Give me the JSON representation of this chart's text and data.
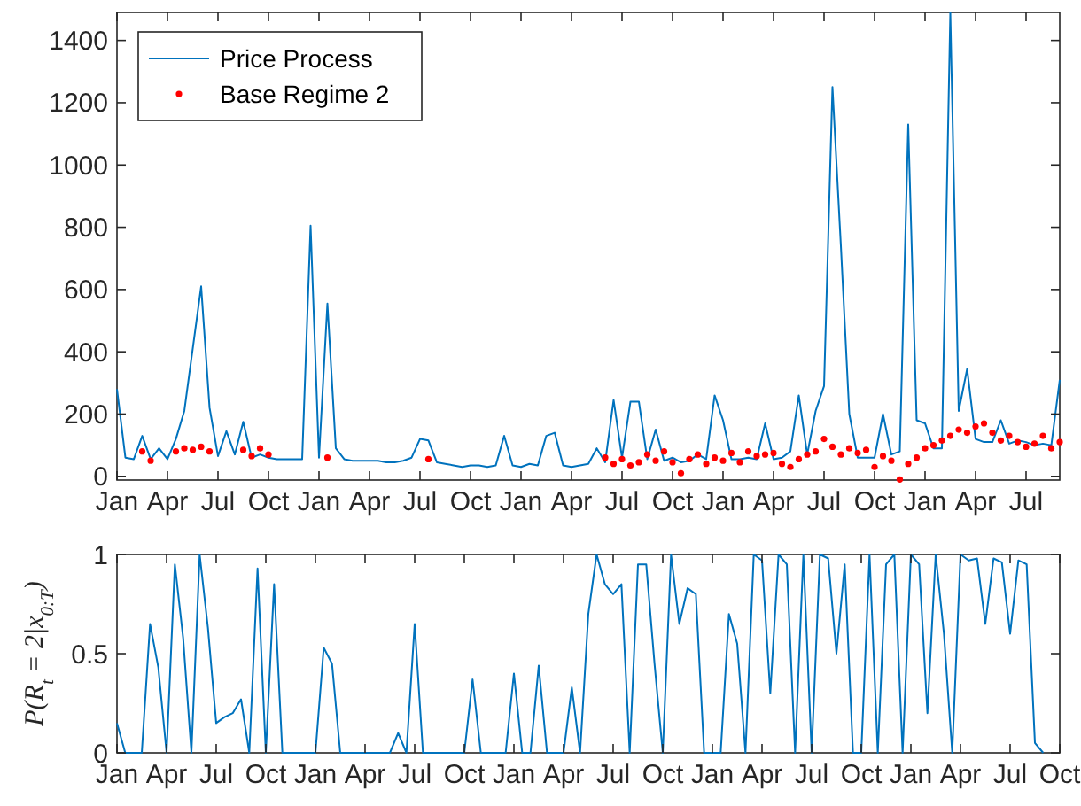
{
  "chart_data": [
    {
      "type": "line",
      "legend": "top left",
      "ylim": [
        -12,
        1490
      ],
      "categories": [
        "Jan",
        null,
        null,
        null,
        null,
        null,
        "Apr",
        null,
        null,
        null,
        null,
        null,
        "Jul",
        null,
        null,
        null,
        null,
        null,
        "Oct",
        null,
        null,
        null,
        null,
        null,
        "Jan",
        null,
        null,
        null,
        null,
        null,
        "Apr",
        null,
        null,
        null,
        null,
        null,
        "Jul",
        null,
        null,
        null,
        null,
        null,
        "Oct",
        null,
        null,
        null,
        null,
        null,
        "Jan",
        null,
        null,
        null,
        null,
        null,
        "Apr",
        null,
        null,
        null,
        null,
        null,
        "Jul",
        null,
        null,
        null,
        null,
        null,
        "Oct",
        null,
        null,
        null,
        null,
        null,
        "Jan",
        null,
        null,
        null,
        null,
        null,
        "Apr",
        null,
        null,
        null,
        null,
        null,
        "Jul",
        null,
        null,
        null,
        null,
        null,
        "Oct",
        null,
        null,
        null,
        null,
        null,
        "Jan",
        null,
        null,
        null,
        null,
        null,
        "Apr",
        null,
        null,
        null,
        null,
        null,
        "Jul",
        null,
        null,
        null,
        null
      ],
      "yticks": [
        0,
        200,
        400,
        600,
        800,
        1000,
        1200,
        1400
      ],
      "series": [
        {
          "name": "Price Process",
          "marker": "none",
          "color": "#0072bd",
          "values": [
            280,
            60,
            55,
            130,
            55,
            90,
            55,
            120,
            210,
            410,
            610,
            220,
            65,
            145,
            70,
            175,
            60,
            70,
            60,
            55,
            55,
            55,
            55,
            805,
            60,
            555,
            90,
            55,
            50,
            50,
            50,
            50,
            45,
            45,
            50,
            60,
            120,
            115,
            45,
            40,
            35,
            30,
            35,
            35,
            30,
            35,
            130,
            35,
            30,
            40,
            35,
            130,
            140,
            35,
            30,
            35,
            40,
            90,
            45,
            245,
            60,
            240,
            240,
            55,
            150,
            50,
            60,
            45,
            50,
            70,
            55,
            260,
            180,
            55,
            55,
            60,
            55,
            170,
            55,
            60,
            80,
            260,
            70,
            210,
            290,
            1250,
            740,
            200,
            60,
            60,
            60,
            200,
            70,
            80,
            1130,
            180,
            170,
            90,
            90,
            1490,
            210,
            345,
            120,
            110,
            110,
            180,
            105,
            115,
            110,
            100,
            105,
            100,
            310
          ]
        },
        {
          "name": "Base Regime 2",
          "type": "scatter",
          "marker": "circle",
          "color": "#ff0000",
          "values": [
            null,
            null,
            null,
            80,
            50,
            null,
            null,
            80,
            90,
            85,
            95,
            80,
            null,
            null,
            null,
            85,
            65,
            90,
            70,
            null,
            null,
            null,
            null,
            null,
            null,
            60,
            null,
            null,
            null,
            null,
            null,
            null,
            null,
            null,
            null,
            null,
            null,
            55,
            null,
            null,
            null,
            null,
            null,
            null,
            null,
            null,
            null,
            null,
            null,
            null,
            null,
            null,
            null,
            null,
            null,
            null,
            null,
            null,
            60,
            40,
            55,
            35,
            45,
            70,
            50,
            80,
            45,
            10,
            55,
            70,
            40,
            60,
            50,
            75,
            45,
            80,
            65,
            70,
            75,
            40,
            30,
            55,
            70,
            80,
            120,
            95,
            70,
            90,
            75,
            85,
            30,
            65,
            50,
            -10,
            40,
            60,
            90,
            100,
            115,
            130,
            150,
            140,
            160,
            170,
            140,
            115,
            130,
            110,
            95,
            105,
            130,
            90,
            110
          ]
        }
      ]
    },
    {
      "type": "line",
      "ylabel": "P(R$_{t}$ = 2|x$_{0:T}$)",
      "ylim": [
        0,
        1
      ],
      "categories": [
        "Jan",
        null,
        null,
        null,
        null,
        null,
        "Apr",
        null,
        null,
        null,
        null,
        null,
        "Jul",
        null,
        null,
        null,
        null,
        null,
        "Oct",
        null,
        null,
        null,
        null,
        null,
        "Jan",
        null,
        null,
        null,
        null,
        null,
        "Apr",
        null,
        null,
        null,
        null,
        null,
        "Jul",
        null,
        null,
        null,
        null,
        null,
        "Oct",
        null,
        null,
        null,
        null,
        null,
        "Jan",
        null,
        null,
        null,
        null,
        null,
        "Apr",
        null,
        null,
        null,
        null,
        null,
        "Jul",
        null,
        null,
        null,
        null,
        null,
        "Oct",
        null,
        null,
        null,
        null,
        null,
        "Jan",
        null,
        null,
        null,
        null,
        null,
        "Apr",
        null,
        null,
        null,
        null,
        null,
        "Jul",
        null,
        null,
        null,
        null,
        null,
        "Oct",
        null,
        null,
        null,
        null,
        null,
        "Jan",
        null,
        null,
        null,
        null,
        null,
        "Apr",
        null,
        null,
        null,
        null,
        null,
        "Jul",
        null,
        null,
        null,
        null,
        null,
        "Oct"
      ],
      "yticks": [
        0,
        0.5,
        1
      ],
      "series": [
        {
          "marker": "none",
          "color": "#0072bd",
          "values": [
            0.15,
            0,
            0,
            0,
            0.65,
            0.43,
            0,
            0.95,
            0.58,
            0,
            1,
            0.63,
            0.15,
            0.18,
            0.2,
            0.27,
            0,
            0.93,
            0,
            0.85,
            0,
            0,
            0,
            0,
            0,
            0.53,
            0.45,
            0,
            0,
            0,
            0,
            0,
            0,
            0,
            0.1,
            0,
            0.65,
            0,
            0,
            0,
            0,
            0,
            0,
            0.37,
            0,
            0,
            0,
            0,
            0.4,
            0,
            0,
            0.44,
            0,
            0,
            0,
            0.33,
            0,
            0.7,
            1,
            0.85,
            0.8,
            0.85,
            0,
            0.95,
            0.95,
            0.45,
            0,
            1,
            0.65,
            0.83,
            0.8,
            0,
            0,
            0,
            0.7,
            0.55,
            0,
            1,
            0.97,
            0.3,
            1,
            0.95,
            0,
            1,
            0,
            1,
            0.98,
            0.5,
            0.95,
            0,
            0,
            1,
            0,
            0.95,
            1,
            0,
            1,
            0.95,
            0.2,
            1,
            0.6,
            0,
            1,
            0.97,
            0.98,
            0.65,
            0.98,
            0.96,
            0.6,
            0.97,
            0.95,
            0.05,
            0,
            null,
            null
          ]
        }
      ]
    }
  ]
}
